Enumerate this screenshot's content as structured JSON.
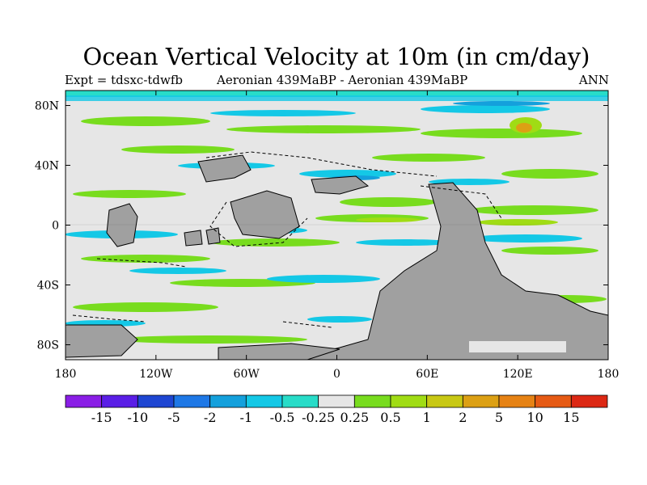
{
  "title": "Ocean Vertical Velocity at 10m (in cm/day)",
  "left_subtitle": "Expt = tdsxc-tdwfb",
  "center_subtitle": "Aeronian 439MaBP - Aeronian 439MaBP",
  "right_subtitle": "ANN",
  "map": {
    "y_ticks": [
      {
        "label": "80N",
        "lat": 80
      },
      {
        "label": "40N",
        "lat": 40
      },
      {
        "label": "0",
        "lat": 0
      },
      {
        "label": "40S",
        "lat": -40
      },
      {
        "label": "80S",
        "lat": -80
      }
    ],
    "x_ticks": [
      {
        "label": "180",
        "lon": -180
      },
      {
        "label": "120W",
        "lon": -120
      },
      {
        "label": "60W",
        "lon": -60
      },
      {
        "label": "0",
        "lon": 0
      },
      {
        "label": "60E",
        "lon": 60
      },
      {
        "label": "120E",
        "lon": 120
      },
      {
        "label": "180",
        "lon": 180
      }
    ],
    "lat_range": [
      -90,
      90
    ],
    "lon_range": [
      -180,
      180
    ],
    "land_color": "#a0a0a0",
    "ocean_neutral_color": "#e6e6e6"
  },
  "colorbar": {
    "colors": [
      "#8a1ee6",
      "#5a1ee6",
      "#1e46d2",
      "#1e78e6",
      "#14a0dc",
      "#14c8e6",
      "#28dcc8",
      "#e6e6e6",
      "#78dc1e",
      "#a0dc14",
      "#c8c814",
      "#dca014",
      "#e68214",
      "#e65a14",
      "#dc2814"
    ],
    "labels": [
      "-15",
      "-10",
      "-5",
      "-2",
      "-1",
      "-0.5",
      "-0.25",
      "0.25",
      "0.5",
      "1",
      "2",
      "5",
      "10",
      "15"
    ]
  }
}
